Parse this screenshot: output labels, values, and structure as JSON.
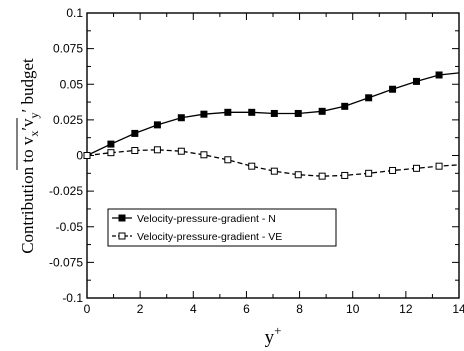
{
  "chart_data": {
    "type": "line",
    "xlabel": "y",
    "xlabel_superscript": "+",
    "ylabel_prefix": "Contribution to ",
    "ylabel_var1": "v",
    "ylabel_sub1": "x",
    "ylabel_prime1": "′",
    "ylabel_var2": "v",
    "ylabel_sub2": "y",
    "ylabel_prime2": "′",
    "ylabel_suffix": " budget",
    "xlim": [
      0,
      14
    ],
    "ylim": [
      -0.1,
      0.1
    ],
    "x_ticks": [
      0,
      2,
      4,
      6,
      8,
      10,
      12,
      14
    ],
    "x_tick_labels": [
      "0",
      "2",
      "4",
      "6",
      "8",
      "10",
      "12",
      "14"
    ],
    "y_ticks": [
      -0.1,
      -0.075,
      -0.05,
      -0.025,
      0,
      0.025,
      0.05,
      0.075,
      0.1
    ],
    "y_tick_labels": [
      "-0.1",
      "-0.075",
      "-0.05",
      "-0.025",
      "0",
      "0.025",
      "0.05",
      "0.075",
      "0.1"
    ],
    "grid": false,
    "legend_position": "lower-left",
    "series": [
      {
        "name": "Velocity-pressure-gradient - N",
        "line_style": "solid",
        "marker": "filled-square",
        "color": "#000000",
        "x": [
          0,
          0.9,
          1.8,
          2.65,
          3.55,
          4.4,
          5.3,
          6.2,
          7.05,
          7.95,
          8.85,
          9.7,
          10.6,
          11.5,
          12.4,
          13.25,
          14
        ],
        "y": [
          0.0,
          0.008,
          0.0155,
          0.0215,
          0.0265,
          0.029,
          0.0303,
          0.0303,
          0.0295,
          0.0295,
          0.031,
          0.0345,
          0.0405,
          0.0465,
          0.052,
          0.0565,
          0.058
        ],
        "marker_x": [
          0,
          0.9,
          1.8,
          2.65,
          3.55,
          4.4,
          5.3,
          6.2,
          7.05,
          7.95,
          8.85,
          9.7,
          10.6,
          11.5,
          12.4,
          13.25
        ],
        "marker_y": [
          0.0,
          0.008,
          0.0155,
          0.0215,
          0.0265,
          0.029,
          0.0303,
          0.0303,
          0.0295,
          0.0295,
          0.031,
          0.0345,
          0.0405,
          0.0465,
          0.052,
          0.0565
        ]
      },
      {
        "name": "Velocity-pressure-gradient - VE",
        "line_style": "dashed",
        "marker": "open-square",
        "color": "#000000",
        "x": [
          0,
          0.9,
          1.8,
          2.65,
          3.55,
          4.4,
          5.3,
          6.2,
          7.05,
          7.95,
          8.85,
          9.7,
          10.6,
          11.5,
          12.4,
          13.25,
          14
        ],
        "y": [
          0.0,
          0.002,
          0.0035,
          0.004,
          0.003,
          0.0005,
          -0.003,
          -0.0075,
          -0.011,
          -0.0135,
          -0.0145,
          -0.014,
          -0.0125,
          -0.0105,
          -0.009,
          -0.0075,
          -0.0065
        ],
        "marker_x": [
          0,
          0.9,
          1.8,
          2.65,
          3.55,
          4.4,
          5.3,
          6.2,
          7.05,
          7.95,
          8.85,
          9.7,
          10.6,
          11.5,
          12.4,
          13.25
        ],
        "marker_y": [
          0.0,
          0.002,
          0.0035,
          0.004,
          0.003,
          0.0005,
          -0.003,
          -0.0075,
          -0.011,
          -0.0135,
          -0.0145,
          -0.014,
          -0.0125,
          -0.0105,
          -0.009,
          -0.0075
        ]
      }
    ]
  }
}
